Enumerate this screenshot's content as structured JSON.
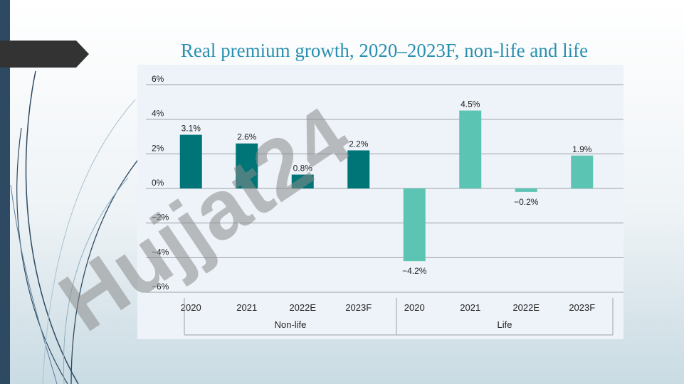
{
  "slide": {
    "title": "Real premium growth, 2020–2023F, non-life and life",
    "colors": {
      "nonlife": "#007577",
      "life": "#5cc4b3",
      "title": "#2a8fb0",
      "sidebar": "#2e4a62"
    }
  },
  "watermark": {
    "text": "Hujjat24",
    "color": "#8c7cf0"
  },
  "chart_data": {
    "type": "bar",
    "title": "",
    "xlabel": "",
    "ylabel": "",
    "ylim": [
      -6,
      6
    ],
    "yticks": [
      "6%",
      "4%",
      "2%",
      "0%",
      "−2%",
      "−4%",
      "−6%"
    ],
    "ytick_values": [
      6,
      4,
      2,
      0,
      -2,
      -4,
      -6
    ],
    "grid": true,
    "groups": [
      {
        "name": "Non-life",
        "color": "#007577",
        "categories": [
          "2020",
          "2021",
          "2022E",
          "2023F"
        ],
        "values": [
          3.1,
          2.6,
          0.8,
          2.2
        ],
        "labels": [
          "3.1%",
          "2.6%",
          "0.8%",
          "2.2%"
        ]
      },
      {
        "name": "Life",
        "color": "#5cc4b3",
        "categories": [
          "2020",
          "2021",
          "2022E",
          "2023F"
        ],
        "values": [
          -4.2,
          4.5,
          -0.2,
          1.9
        ],
        "labels": [
          "−4.2%",
          "4.5%",
          "−0.2%",
          "1.9%"
        ]
      }
    ]
  }
}
